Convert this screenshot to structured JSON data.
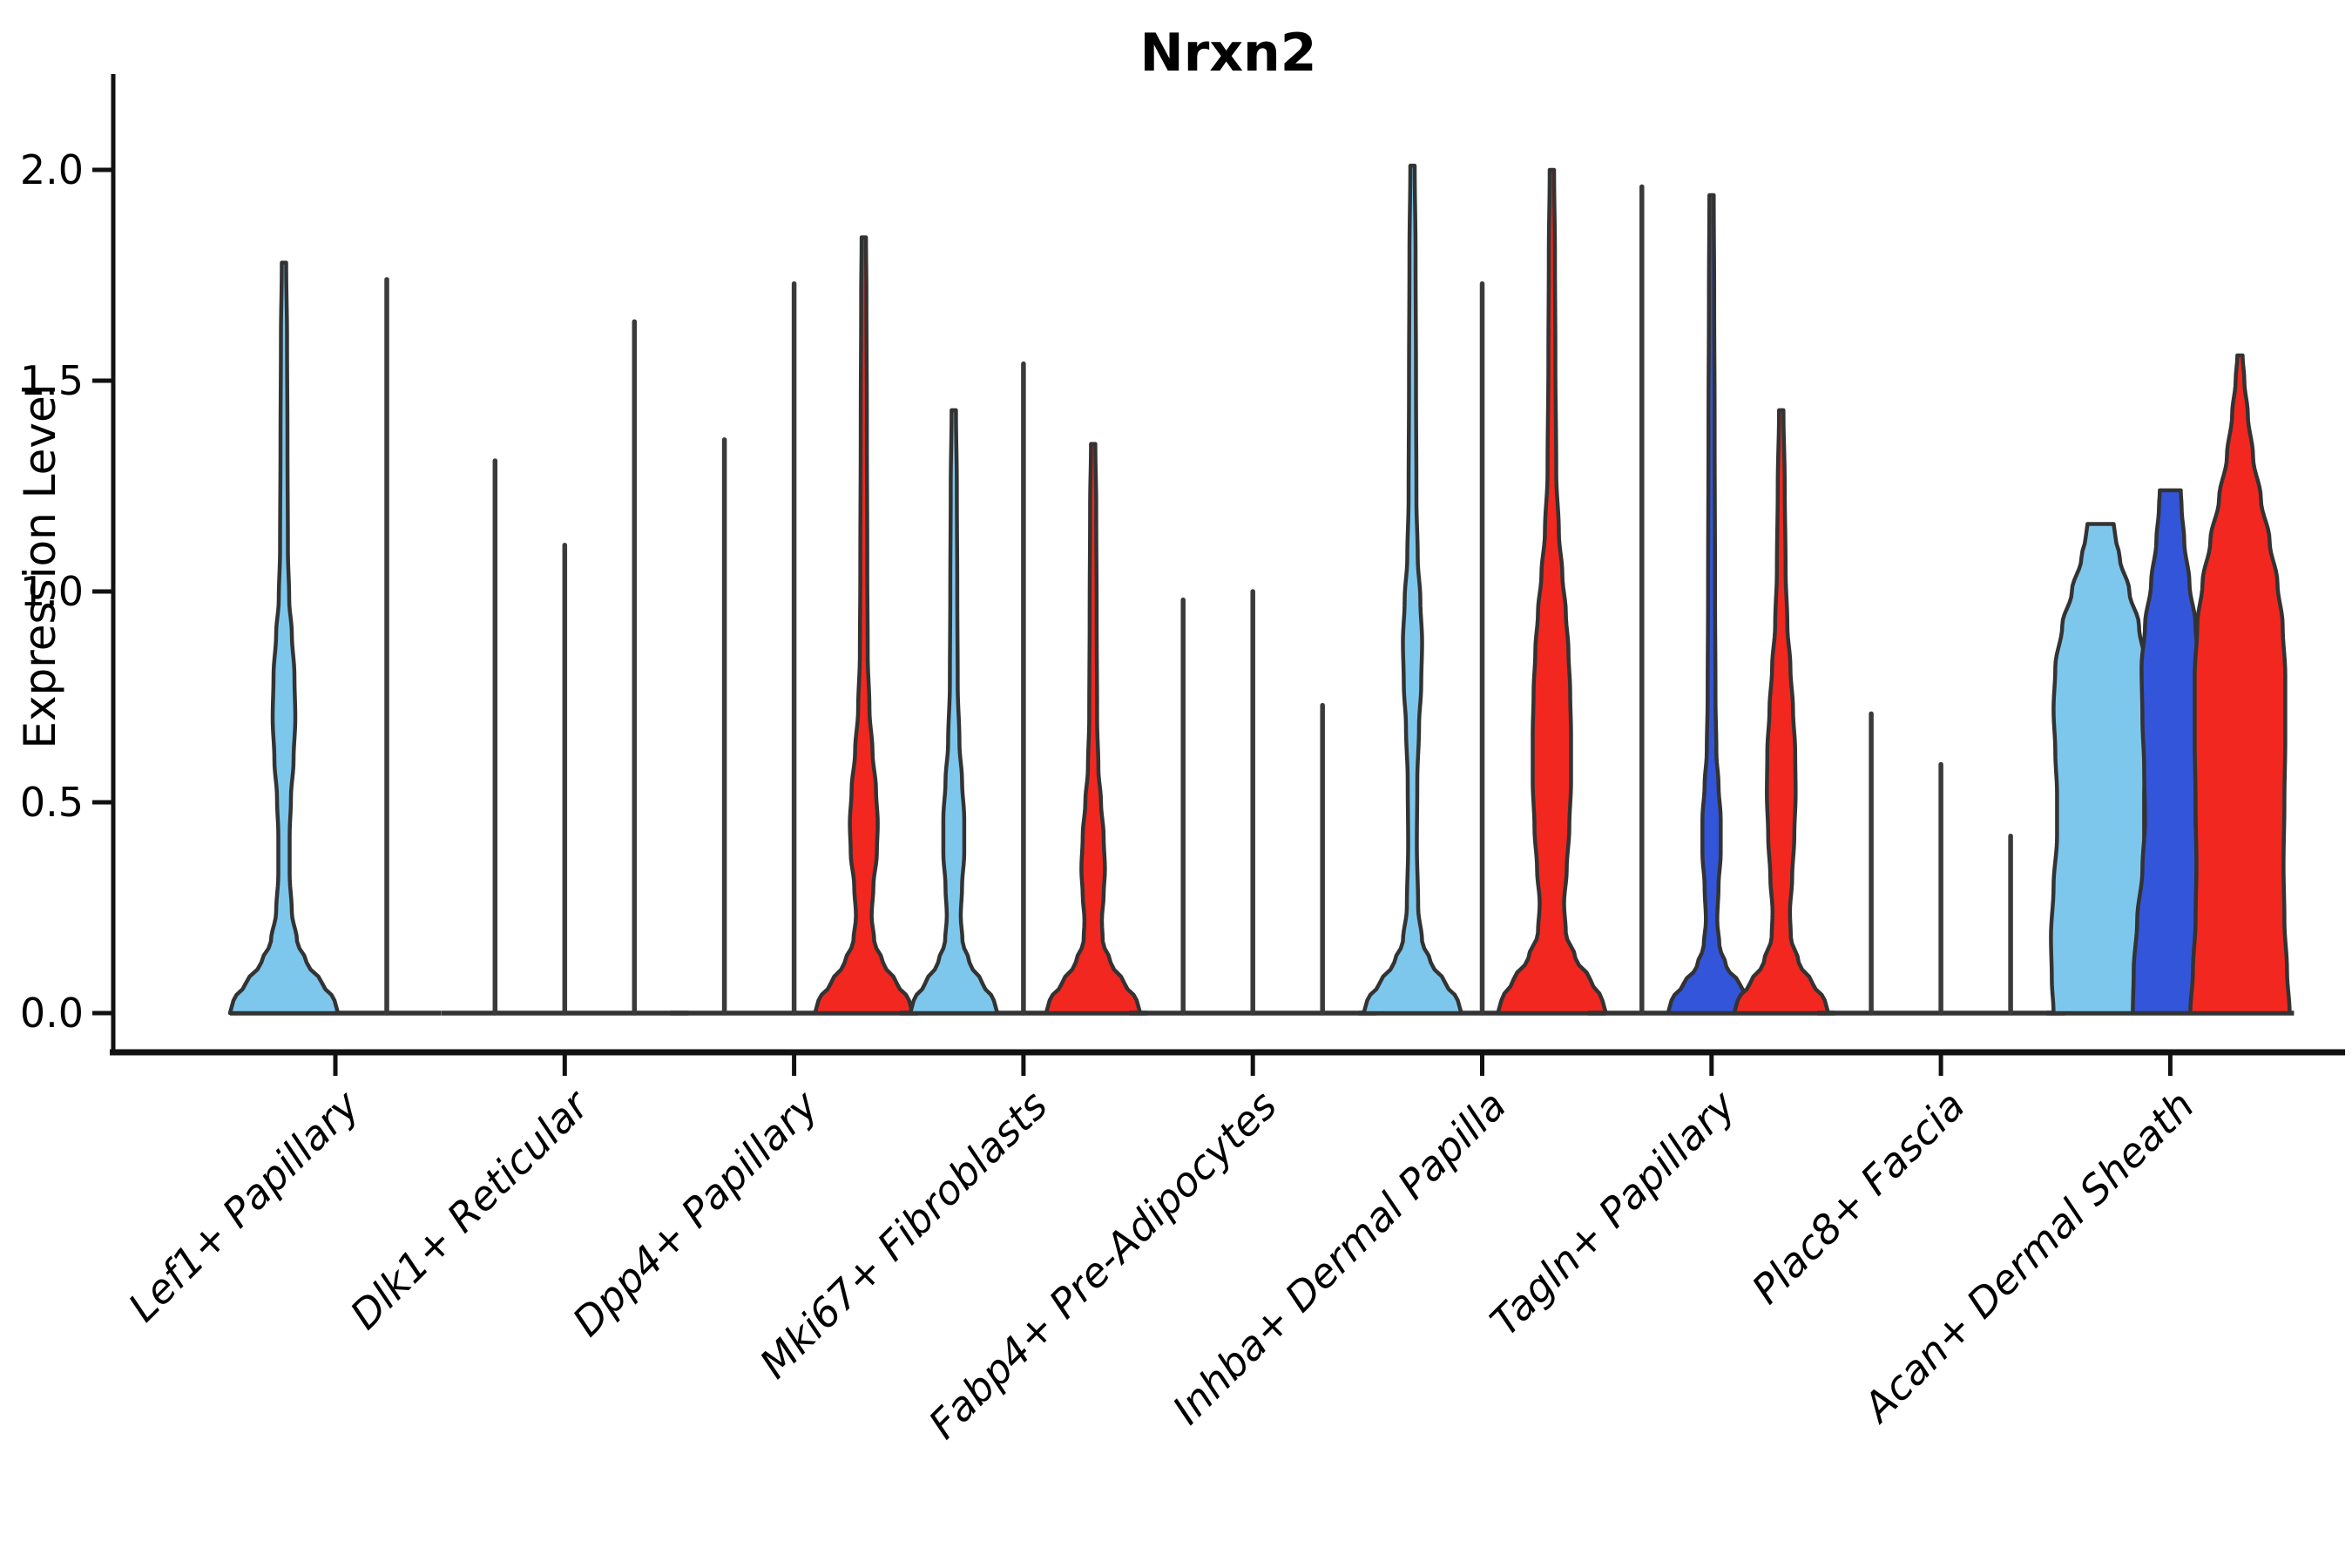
{
  "title": "Nrxn2",
  "ylabel": "Expression Level",
  "chart_data": {
    "type": "violin",
    "title": "Nrxn2",
    "xlabel": "",
    "ylabel": "Expression Level",
    "ylim": [
      -0.09,
      2.23
    ],
    "yticks": [
      0.0,
      0.5,
      1.0,
      1.5,
      2.0
    ],
    "ytick_labels": [
      "0.0",
      "0.5",
      "1.0",
      "1.5",
      "2.0"
    ],
    "xtick_rotation_deg": 45,
    "grid": false,
    "legend": "none",
    "categories": [
      "Lef1+ Papillary",
      "Dlk1+ Reticular",
      "Dpp4+ Papillary",
      "Mki67+ Fibroblasts",
      "Fabp4+ Pre-Adipocytes",
      "Inhba+ Dermal Papilla",
      "Tagln+ Papillary",
      "Plac8+ Fascia",
      "Acan+ Dermal Sheath"
    ],
    "split_colors": {
      "light_blue": "#7EC7EC",
      "dark_blue": "#3355D9",
      "red": "#F2271F"
    },
    "edge_color": "#333333",
    "collapsed_line_color": "#3A3A3A",
    "axis_color": "#111111",
    "max_by_category": {
      "Lef1+ Papillary": [
        1.78,
        1.74
      ],
      "Dlk1+ Reticular": [
        1.31,
        1.11,
        1.64
      ],
      "Dpp4+ Papillary": [
        1.36,
        1.73,
        1.84
      ],
      "Mki67+ Fibroblasts": [
        1.43,
        1.54,
        1.35
      ],
      "Fabp4+ Pre-Adipocytes": [
        0.98,
        1.0,
        0.73
      ],
      "Inhba+ Dermal Papilla": [
        2.01,
        1.73,
        2.0
      ],
      "Tagln+ Papillary": [
        1.96,
        1.94,
        1.43
      ],
      "Plac8+ Fascia": [
        0.71,
        0.59,
        0.42
      ],
      "Acan+ Dermal Sheath": [
        1.16,
        1.24,
        1.56
      ]
    },
    "groups": [
      {
        "category": "Lef1+ Papillary",
        "violins": [
          {
            "color_key": "light_blue",
            "max": 1.78,
            "collapsed": false,
            "offset": -59,
            "blunt_top": false,
            "profile": [
              [
                0,
                62
              ],
              [
                0.03,
                58
              ],
              [
                0.07,
                44
              ],
              [
                0.12,
                26
              ],
              [
                0.17,
                15
              ],
              [
                0.24,
                9
              ],
              [
                0.33,
                6.5
              ],
              [
                0.42,
                6.5
              ],
              [
                0.51,
                8
              ],
              [
                0.6,
                11
              ],
              [
                0.7,
                13
              ],
              [
                0.8,
                12
              ],
              [
                0.9,
                9
              ],
              [
                0.98,
                6
              ],
              [
                1.1,
                4.5
              ],
              [
                1.35,
                4
              ],
              [
                1.6,
                3.5
              ],
              [
                1.78,
                2.5
              ]
            ]
          },
          {
            "color_key": "red",
            "max": 1.74,
            "collapsed": true,
            "offset": 59
          }
        ]
      },
      {
        "category": "Dlk1+ Reticular",
        "violins": [
          {
            "color_key": "light_blue",
            "max": 1.31,
            "collapsed": true,
            "offset": -80
          },
          {
            "color_key": "dark_blue",
            "max": 1.11,
            "collapsed": true,
            "offset": 0
          },
          {
            "color_key": "red",
            "max": 1.64,
            "collapsed": true,
            "offset": 80
          }
        ]
      },
      {
        "category": "Dpp4+ Papillary",
        "violins": [
          {
            "color_key": "light_blue",
            "max": 1.36,
            "collapsed": true,
            "offset": -80
          },
          {
            "color_key": "dark_blue",
            "max": 1.73,
            "collapsed": true,
            "offset": 0
          },
          {
            "color_key": "red",
            "max": 1.84,
            "collapsed": false,
            "offset": 80,
            "blunt_top": false,
            "profile": [
              [
                0,
                56
              ],
              [
                0.03,
                52
              ],
              [
                0.07,
                38
              ],
              [
                0.12,
                22
              ],
              [
                0.17,
                12
              ],
              [
                0.23,
                9
              ],
              [
                0.3,
                11
              ],
              [
                0.38,
                15
              ],
              [
                0.45,
                16
              ],
              [
                0.53,
                14
              ],
              [
                0.62,
                10
              ],
              [
                0.72,
                6.5
              ],
              [
                0.85,
                4.5
              ],
              [
                1.05,
                4
              ],
              [
                1.4,
                3.5
              ],
              [
                1.7,
                3
              ],
              [
                1.84,
                2.5
              ]
            ]
          }
        ]
      },
      {
        "category": "Mki67+ Fibroblasts",
        "violins": [
          {
            "color_key": "light_blue",
            "max": 1.43,
            "collapsed": false,
            "offset": -80,
            "blunt_top": false,
            "profile": [
              [
                0,
                50
              ],
              [
                0.03,
                46
              ],
              [
                0.07,
                33
              ],
              [
                0.12,
                18
              ],
              [
                0.17,
                10
              ],
              [
                0.23,
                8
              ],
              [
                0.3,
                9.5
              ],
              [
                0.38,
                12
              ],
              [
                0.46,
                12
              ],
              [
                0.55,
                9.5
              ],
              [
                0.64,
                6.5
              ],
              [
                0.78,
                4.5
              ],
              [
                1.0,
                4
              ],
              [
                1.25,
                3.5
              ],
              [
                1.43,
                2.5
              ]
            ]
          },
          {
            "color_key": "dark_blue",
            "max": 1.54,
            "collapsed": true,
            "offset": 0
          },
          {
            "color_key": "red",
            "max": 1.35,
            "collapsed": false,
            "offset": 80,
            "blunt_top": false,
            "profile": [
              [
                0,
                54
              ],
              [
                0.03,
                50
              ],
              [
                0.07,
                36
              ],
              [
                0.12,
                20
              ],
              [
                0.17,
                11
              ],
              [
                0.22,
                10
              ],
              [
                0.28,
                12
              ],
              [
                0.34,
                13.5
              ],
              [
                0.42,
                12
              ],
              [
                0.5,
                9
              ],
              [
                0.58,
                6
              ],
              [
                0.7,
                4.5
              ],
              [
                0.95,
                4
              ],
              [
                1.2,
                3.5
              ],
              [
                1.35,
                2.5
              ]
            ]
          }
        ]
      },
      {
        "category": "Fabp4+ Pre-Adipocytes",
        "violins": [
          {
            "color_key": "light_blue",
            "max": 0.98,
            "collapsed": true,
            "offset": -80
          },
          {
            "color_key": "dark_blue",
            "max": 1.0,
            "collapsed": true,
            "offset": 0
          },
          {
            "color_key": "red",
            "max": 0.73,
            "collapsed": true,
            "offset": 80
          }
        ]
      },
      {
        "category": "Inhba+ Dermal Papilla",
        "violins": [
          {
            "color_key": "light_blue",
            "max": 2.01,
            "collapsed": false,
            "offset": -80,
            "blunt_top": false,
            "profile": [
              [
                0,
                56
              ],
              [
                0.03,
                52
              ],
              [
                0.07,
                38
              ],
              [
                0.12,
                21
              ],
              [
                0.17,
                11
              ],
              [
                0.25,
                6.5
              ],
              [
                0.4,
                5
              ],
              [
                0.55,
                5.5
              ],
              [
                0.68,
                7.5
              ],
              [
                0.78,
                10
              ],
              [
                0.88,
                11
              ],
              [
                0.98,
                9
              ],
              [
                1.08,
                6
              ],
              [
                1.22,
                4.5
              ],
              [
                1.5,
                4
              ],
              [
                1.8,
                3.5
              ],
              [
                2.01,
                2.5
              ]
            ]
          },
          {
            "color_key": "dark_blue",
            "max": 1.73,
            "collapsed": true,
            "offset": 0
          },
          {
            "color_key": "red",
            "max": 2.0,
            "collapsed": false,
            "offset": 80,
            "blunt_top": false,
            "profile": [
              [
                0,
                62
              ],
              [
                0.03,
                58
              ],
              [
                0.08,
                44
              ],
              [
                0.13,
                27
              ],
              [
                0.19,
                16
              ],
              [
                0.26,
                14
              ],
              [
                0.34,
                17
              ],
              [
                0.44,
                20
              ],
              [
                0.55,
                22
              ],
              [
                0.66,
                22
              ],
              [
                0.76,
                21
              ],
              [
                0.86,
                19
              ],
              [
                0.95,
                16
              ],
              [
                1.04,
                12
              ],
              [
                1.14,
                8
              ],
              [
                1.28,
                5
              ],
              [
                1.55,
                4
              ],
              [
                1.8,
                3.5
              ],
              [
                2.0,
                2.5
              ]
            ]
          }
        ]
      },
      {
        "category": "Tagln+ Papillary",
        "violins": [
          {
            "color_key": "light_blue",
            "max": 1.96,
            "collapsed": true,
            "offset": -80
          },
          {
            "color_key": "dark_blue",
            "max": 1.94,
            "collapsed": false,
            "offset": 0,
            "blunt_top": false,
            "profile": [
              [
                0,
                50
              ],
              [
                0.03,
                46
              ],
              [
                0.07,
                32
              ],
              [
                0.11,
                17
              ],
              [
                0.16,
                9
              ],
              [
                0.22,
                6.5
              ],
              [
                0.3,
                8
              ],
              [
                0.38,
                10.5
              ],
              [
                0.46,
                10.5
              ],
              [
                0.54,
                8
              ],
              [
                0.62,
                5.5
              ],
              [
                0.75,
                4.5
              ],
              [
                1.0,
                4
              ],
              [
                1.4,
                3.5
              ],
              [
                1.7,
                3
              ],
              [
                1.94,
                2.5
              ]
            ]
          },
          {
            "color_key": "red",
            "max": 1.43,
            "collapsed": false,
            "offset": 80,
            "blunt_top": false,
            "profile": [
              [
                0,
                54
              ],
              [
                0.03,
                50
              ],
              [
                0.07,
                36
              ],
              [
                0.12,
                20
              ],
              [
                0.18,
                11
              ],
              [
                0.24,
                10
              ],
              [
                0.32,
                12.5
              ],
              [
                0.42,
                15
              ],
              [
                0.52,
                16.5
              ],
              [
                0.62,
                16
              ],
              [
                0.72,
                13.5
              ],
              [
                0.82,
                10.5
              ],
              [
                0.92,
                7
              ],
              [
                1.05,
                5
              ],
              [
                1.25,
                4
              ],
              [
                1.43,
                2.5
              ]
            ]
          }
        ]
      },
      {
        "category": "Plac8+ Fascia",
        "violins": [
          {
            "color_key": "light_blue",
            "max": 0.71,
            "collapsed": true,
            "offset": -80
          },
          {
            "color_key": "dark_blue",
            "max": 0.59,
            "collapsed": true,
            "offset": 0
          },
          {
            "color_key": "red",
            "max": 0.42,
            "collapsed": true,
            "offset": 80
          }
        ]
      },
      {
        "category": "Acan+ Dermal Sheath",
        "violins": [
          {
            "color_key": "light_blue",
            "max": 1.16,
            "collapsed": false,
            "offset": -80,
            "blunt_top": true,
            "profile": [
              [
                0,
                54
              ],
              [
                0.08,
                56
              ],
              [
                0.18,
                57
              ],
              [
                0.3,
                54
              ],
              [
                0.42,
                50
              ],
              [
                0.52,
                50
              ],
              [
                0.62,
                52
              ],
              [
                0.72,
                54
              ],
              [
                0.82,
                52
              ],
              [
                0.92,
                44
              ],
              [
                1.0,
                33
              ],
              [
                1.08,
                22
              ],
              [
                1.13,
                17
              ],
              [
                1.16,
                15
              ]
            ]
          },
          {
            "color_key": "dark_blue",
            "max": 1.24,
            "collapsed": false,
            "offset": 0,
            "blunt_top": true,
            "profile": [
              [
                0,
                43
              ],
              [
                0.1,
                42
              ],
              [
                0.22,
                38
              ],
              [
                0.34,
                32
              ],
              [
                0.46,
                29
              ],
              [
                0.58,
                30
              ],
              [
                0.7,
                32
              ],
              [
                0.82,
                33
              ],
              [
                0.92,
                29
              ],
              [
                1.02,
                22
              ],
              [
                1.12,
                16
              ],
              [
                1.2,
                13
              ],
              [
                1.24,
                12
              ]
            ]
          },
          {
            "color_key": "red",
            "max": 1.56,
            "collapsed": false,
            "offset": 80,
            "blunt_top": false,
            "profile": [
              [
                0,
                57
              ],
              [
                0.1,
                54
              ],
              [
                0.22,
                51
              ],
              [
                0.35,
                50
              ],
              [
                0.5,
                51
              ],
              [
                0.65,
                52
              ],
              [
                0.8,
                52
              ],
              [
                0.92,
                49
              ],
              [
                1.02,
                43
              ],
              [
                1.12,
                34
              ],
              [
                1.22,
                24
              ],
              [
                1.32,
                15
              ],
              [
                1.42,
                9
              ],
              [
                1.5,
                5
              ],
              [
                1.56,
                3
              ]
            ]
          }
        ]
      }
    ]
  }
}
